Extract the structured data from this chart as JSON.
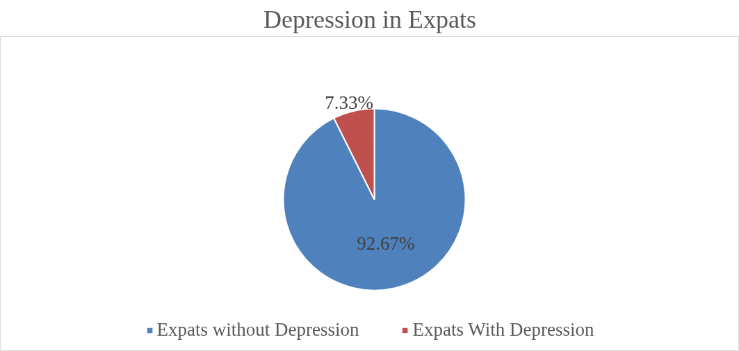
{
  "chart_data": {
    "type": "pie",
    "title": "Depression in Expats",
    "categories": [
      "Expats without Depression",
      "Expats With Depression"
    ],
    "values": [
      92.67,
      7.33
    ],
    "colors": [
      "#4f81bd",
      "#c0504d"
    ],
    "value_labels": [
      "92.67%",
      "7.33%"
    ],
    "legend": "bottom"
  }
}
